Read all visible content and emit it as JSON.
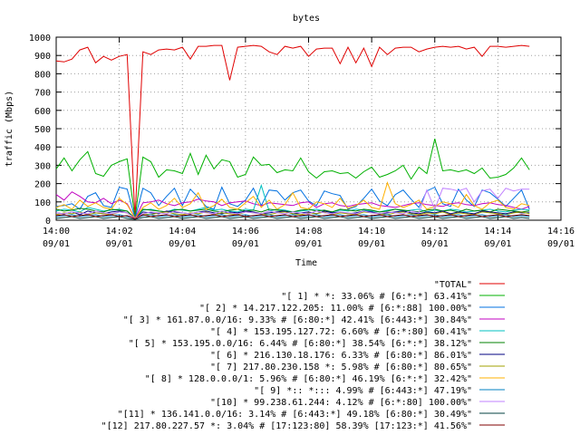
{
  "chart_data": {
    "type": "line",
    "title": "bytes",
    "xlabel": "Time",
    "ylabel": "traffic (Mbps)",
    "ylim": [
      0,
      1000
    ],
    "yticks": [
      0,
      100,
      200,
      300,
      400,
      500,
      600,
      700,
      800,
      900,
      1000
    ],
    "xlim": [
      0,
      16
    ],
    "x_unit": "minutes after 14:00 on 09/01",
    "xticks": [
      {
        "x": 0,
        "time": "14:00",
        "date": "09/01"
      },
      {
        "x": 2,
        "time": "14:02",
        "date": "09/01"
      },
      {
        "x": 4,
        "time": "14:04",
        "date": "09/01"
      },
      {
        "x": 6,
        "time": "14:06",
        "date": "09/01"
      },
      {
        "x": 8,
        "time": "14:08",
        "date": "09/01"
      },
      {
        "x": 10,
        "time": "14:10",
        "date": "09/01"
      },
      {
        "x": 12,
        "time": "14:12",
        "date": "09/01"
      },
      {
        "x": 14,
        "time": "14:14",
        "date": "09/01"
      },
      {
        "x": 16,
        "time": "14:16",
        "date": "09/01"
      }
    ],
    "grid": true,
    "legend_position": "bottom",
    "x": [
      0,
      0.25,
      0.5,
      0.75,
      1,
      1.25,
      1.5,
      1.75,
      2,
      2.25,
      2.5,
      2.75,
      3,
      3.25,
      3.5,
      3.75,
      4,
      4.25,
      4.5,
      4.75,
      5,
      5.25,
      5.5,
      5.75,
      6,
      6.25,
      6.5,
      6.75,
      7,
      7.25,
      7.5,
      7.75,
      8,
      8.25,
      8.5,
      8.75,
      9,
      9.25,
      9.5,
      9.75,
      10,
      10.25,
      10.5,
      10.75,
      11,
      11.25,
      11.5,
      11.75,
      12,
      12.25,
      12.5,
      12.75,
      13,
      13.25,
      13.5,
      13.75,
      14,
      14.25,
      14.5,
      14.75,
      15
    ],
    "series": [
      {
        "name": "\"TOTAL\"",
        "color": "#e00000",
        "values": [
          870,
          865,
          880,
          930,
          945,
          860,
          895,
          875,
          895,
          905,
          10,
          920,
          905,
          930,
          935,
          930,
          945,
          880,
          950,
          950,
          955,
          955,
          765,
          945,
          950,
          955,
          950,
          920,
          905,
          950,
          940,
          950,
          895,
          935,
          940,
          940,
          855,
          945,
          860,
          940,
          840,
          945,
          905,
          940,
          945,
          945,
          920,
          935,
          945,
          950,
          945,
          950,
          935,
          945,
          895,
          950,
          950,
          945,
          950,
          955,
          950
        ]
      },
      {
        "name": "\"[ 1] * *: 33.06% # [6:*:*] 63.41%\"",
        "color": "#00b000",
        "values": [
          280,
          340,
          270,
          330,
          375,
          255,
          240,
          300,
          320,
          335,
          10,
          345,
          320,
          235,
          275,
          270,
          255,
          365,
          250,
          355,
          280,
          330,
          320,
          235,
          250,
          345,
          300,
          305,
          260,
          275,
          270,
          340,
          265,
          230,
          265,
          270,
          255,
          260,
          230,
          265,
          290,
          235,
          250,
          270,
          300,
          225,
          290,
          255,
          445,
          270,
          275,
          265,
          275,
          255,
          285,
          230,
          235,
          250,
          285,
          340,
          275
        ]
      },
      {
        "name": "\"[ 2] * 14.217.122.205: 11.00% # [6:*:88] 100.00%\"",
        "color": "#0070e0",
        "values": [
          75,
          80,
          90,
          60,
          130,
          150,
          80,
          70,
          180,
          170,
          10,
          175,
          150,
          80,
          130,
          175,
          80,
          170,
          125,
          75,
          60,
          180,
          90,
          75,
          110,
          175,
          80,
          165,
          160,
          110,
          150,
          165,
          105,
          80,
          160,
          145,
          135,
          60,
          75,
          120,
          170,
          105,
          80,
          140,
          165,
          115,
          70,
          160,
          180,
          90,
          75,
          170,
          110,
          75,
          165,
          150,
          115,
          75,
          120,
          165,
          60
        ]
      },
      {
        "name": "\"[ 3] * 161.87.0.0/16: 9.33% # [6:80:*] 42.41% [6:443:*] 30.84%\"",
        "color": "#c000c0",
        "values": [
          140,
          110,
          155,
          130,
          100,
          95,
          120,
          90,
          110,
          90,
          10,
          95,
          100,
          110,
          90,
          80,
          95,
          100,
          115,
          105,
          100,
          80,
          95,
          100,
          105,
          90,
          80,
          95,
          90,
          85,
          80,
          95,
          100,
          70,
          90,
          95,
          80,
          75,
          85,
          90,
          95,
          80,
          75,
          70,
          80,
          90,
          95,
          85,
          80,
          75,
          90,
          95,
          85,
          80,
          90,
          95,
          85,
          80,
          70,
          60,
          75
        ]
      },
      {
        "name": "\"[ 4] * 153.195.127.72: 6.60% # [6:*:80] 60.41%\"",
        "color": "#00c0c0",
        "values": [
          50,
          60,
          55,
          45,
          70,
          60,
          50,
          55,
          60,
          50,
          10,
          55,
          60,
          50,
          45,
          60,
          55,
          50,
          60,
          70,
          55,
          60,
          50,
          45,
          60,
          55,
          190,
          50,
          60,
          55,
          45,
          50,
          55,
          60,
          50,
          45,
          55,
          50,
          60,
          55,
          50,
          45,
          55,
          60,
          50,
          55,
          60,
          45,
          55,
          50,
          60,
          55,
          45,
          50,
          55,
          60,
          50,
          45,
          55,
          60,
          55
        ]
      },
      {
        "name": "\"[ 5] * 153.195.0.0/16: 6.44% # [6:80:*] 38.54% [6:*:*] 38.12%\"",
        "color": "#008000",
        "values": [
          60,
          50,
          55,
          65,
          60,
          50,
          45,
          60,
          55,
          50,
          10,
          60,
          55,
          50,
          45,
          55,
          60,
          50,
          55,
          60,
          50,
          45,
          55,
          60,
          50,
          55,
          45,
          60,
          55,
          50,
          45,
          55,
          60,
          50,
          55,
          45,
          60,
          55,
          50,
          60,
          55,
          45,
          50,
          60,
          55,
          50,
          45,
          55,
          60,
          50,
          55,
          45,
          60,
          50,
          55,
          45,
          60,
          55,
          50,
          45,
          50
        ]
      },
      {
        "name": "\"[ 6] * 216.130.18.176: 6.33% # [6:80:*] 86.01%\"",
        "color": "#000080",
        "values": [
          40,
          35,
          45,
          30,
          50,
          40,
          35,
          45,
          50,
          40,
          10,
          45,
          40,
          35,
          50,
          45,
          40,
          35,
          45,
          50,
          40,
          35,
          45,
          40,
          50,
          45,
          35,
          40,
          45,
          50,
          35,
          40,
          45,
          35,
          50,
          40,
          45,
          35,
          40,
          50,
          45,
          35,
          40,
          45,
          50,
          40,
          35,
          45,
          40,
          50,
          35,
          45,
          40,
          35,
          50,
          45,
          40,
          35,
          45,
          40,
          40
        ]
      },
      {
        "name": "\"[ 7] 217.80.230.158 *: 5.98% # [6:80:*] 80.65%\"",
        "color": "#a0a000",
        "values": [
          30,
          40,
          35,
          45,
          30,
          40,
          35,
          30,
          45,
          40,
          10,
          35,
          30,
          40,
          45,
          35,
          30,
          40,
          35,
          45,
          30,
          40,
          35,
          30,
          45,
          40,
          35,
          30,
          40,
          45,
          35,
          30,
          40,
          35,
          45,
          30,
          40,
          35,
          30,
          45,
          40,
          35,
          30,
          40,
          45,
          35,
          30,
          40,
          35,
          45,
          30,
          40,
          35,
          30,
          45,
          40,
          35,
          30,
          40,
          45,
          35
        ]
      },
      {
        "name": "\"[ 8] * 128.0.0.0/1: 5.96% # [6:80:*] 46.19% [6:*:*] 32.42%\"",
        "color": "#ffb000",
        "values": [
          70,
          85,
          60,
          110,
          75,
          95,
          70,
          60,
          120,
          85,
          10,
          70,
          95,
          60,
          80,
          120,
          70,
          90,
          150,
          60,
          80,
          115,
          70,
          60,
          95,
          130,
          70,
          110,
          60,
          85,
          150,
          70,
          60,
          100,
          90,
          70,
          120,
          65,
          80,
          110,
          70,
          60,
          205,
          90,
          70,
          85,
          110,
          60,
          75,
          100,
          90,
          70,
          140,
          80,
          60,
          95,
          110,
          70,
          60,
          90,
          80
        ]
      },
      {
        "name": "\"[ 9] *:: *::: 4.99% # [6:443:*] 47.19%\"",
        "color": "#0080c0",
        "values": [
          20,
          25,
          30,
          20,
          25,
          30,
          20,
          25,
          30,
          20,
          10,
          25,
          30,
          20,
          25,
          30,
          20,
          25,
          30,
          20,
          25,
          30,
          20,
          25,
          30,
          20,
          25,
          30,
          20,
          25,
          30,
          20,
          25,
          30,
          20,
          25,
          30,
          20,
          25,
          30,
          20,
          25,
          30,
          20,
          25,
          30,
          20,
          25,
          30,
          20,
          25,
          30,
          20,
          25,
          30,
          20,
          25,
          30,
          20,
          25,
          20
        ]
      },
      {
        "name": "\"[10] * 99.238.61.244: 4.12% # [6:*:80] 100.00%\"",
        "color": "#c080ff",
        "values": [
          40,
          35,
          45,
          40,
          35,
          50,
          40,
          35,
          45,
          40,
          10,
          35,
          45,
          40,
          35,
          50,
          40,
          35,
          45,
          40,
          35,
          50,
          40,
          35,
          45,
          40,
          35,
          50,
          40,
          35,
          45,
          40,
          35,
          50,
          40,
          35,
          45,
          40,
          35,
          50,
          40,
          35,
          45,
          40,
          35,
          50,
          40,
          165,
          60,
          175,
          170,
          160,
          175,
          100,
          160,
          170,
          120,
          175,
          160,
          170,
          170
        ]
      },
      {
        "name": "\"[11] * 136.141.0.0/16: 3.14% # [6:443:*] 49.18% [6:80:*] 30.49%\"",
        "color": "#004040",
        "values": [
          10,
          15,
          20,
          10,
          15,
          20,
          10,
          15,
          20,
          10,
          5,
          15,
          20,
          10,
          15,
          20,
          10,
          15,
          20,
          10,
          15,
          20,
          10,
          15,
          20,
          10,
          15,
          20,
          10,
          15,
          20,
          10,
          15,
          20,
          10,
          15,
          20,
          10,
          15,
          20,
          10,
          15,
          20,
          10,
          15,
          20,
          10,
          15,
          20,
          10,
          15,
          20,
          10,
          15,
          20,
          10,
          15,
          20,
          10,
          15,
          10
        ]
      },
      {
        "name": "\"[12] 217.80.227.57 *: 3.04% # [17:123:80] 58.39% [17:123:*] 41.56%\"",
        "color": "#800000",
        "values": [
          25,
          30,
          20,
          25,
          30,
          20,
          25,
          30,
          20,
          25,
          8,
          30,
          20,
          25,
          30,
          20,
          25,
          30,
          20,
          25,
          30,
          20,
          25,
          30,
          20,
          25,
          30,
          20,
          25,
          30,
          20,
          25,
          30,
          20,
          25,
          30,
          20,
          25,
          30,
          20,
          25,
          30,
          20,
          25,
          30,
          20,
          25,
          30,
          20,
          25,
          30,
          20,
          25,
          30,
          20,
          25,
          30,
          20,
          25,
          30,
          25
        ]
      }
    ]
  }
}
